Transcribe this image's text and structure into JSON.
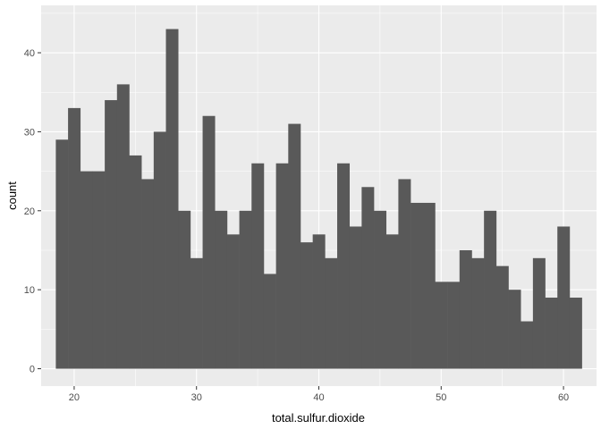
{
  "chart_data": {
    "type": "bar",
    "subtype": "histogram",
    "xlabel": "total.sulfur.dioxide",
    "ylabel": "count",
    "x_range": [
      17.3,
      62.7
    ],
    "y_range": [
      -2.2,
      46
    ],
    "x_ticks": [
      20,
      30,
      40,
      50,
      60
    ],
    "y_ticks": [
      0,
      10,
      20,
      30,
      40
    ],
    "bin_width": 1,
    "bins_start": 18.5,
    "counts": [
      29,
      33,
      25,
      25,
      34,
      36,
      27,
      24,
      30,
      43,
      20,
      14,
      32,
      20,
      17,
      20,
      26,
      12,
      26,
      31,
      16,
      17,
      14,
      26,
      18,
      23,
      20,
      17,
      24,
      21,
      21,
      11,
      11,
      15,
      14,
      20,
      13,
      10,
      6,
      14,
      9,
      18,
      9
    ],
    "bar_color": "#595959",
    "panel_color": "#ebebeb",
    "grid": true
  }
}
